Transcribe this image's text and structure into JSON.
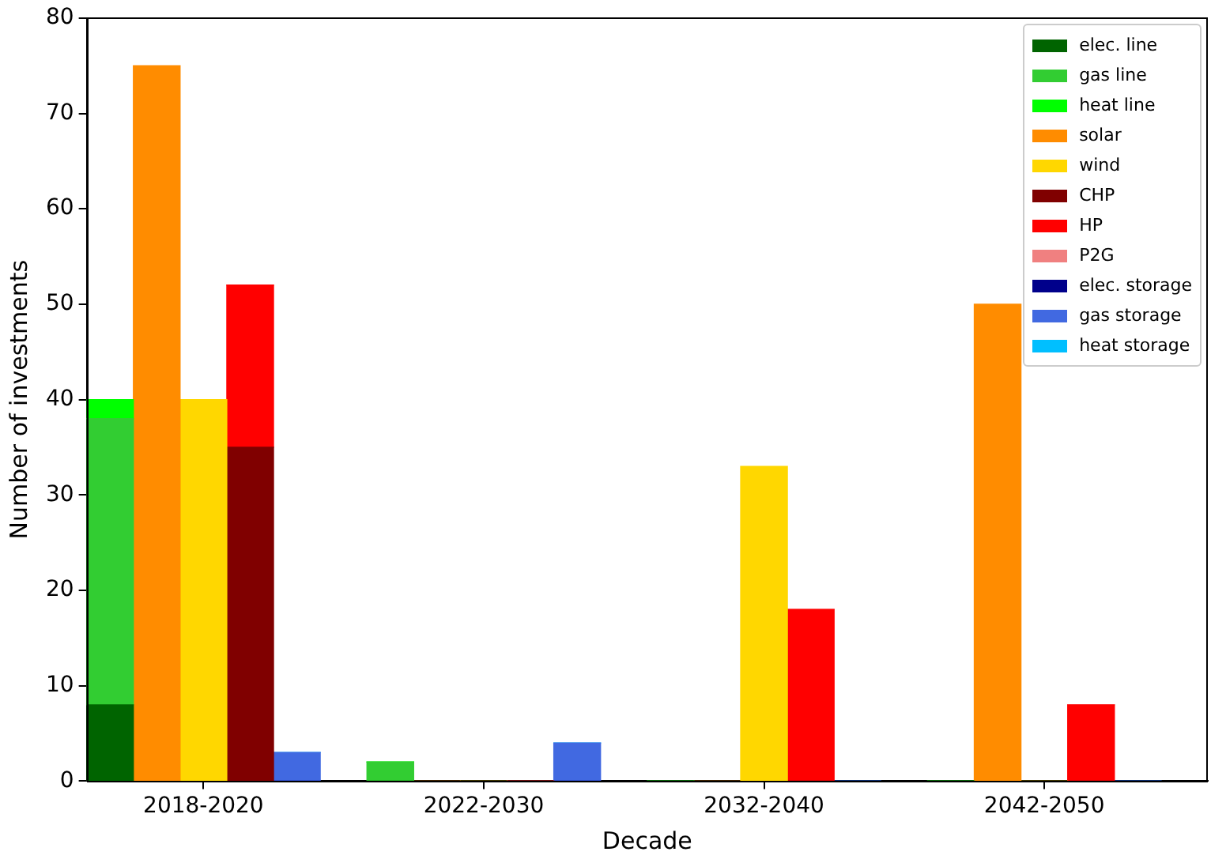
{
  "chart_data": {
    "type": "bar",
    "stacked": true,
    "xlabel": "Decade",
    "ylabel": "Number of investments",
    "categories": [
      null,
      null,
      "2018-2020",
      null,
      null,
      null,
      null,
      null,
      "2022-2030",
      null,
      null,
      null,
      null,
      null,
      "2032-2040",
      null,
      null,
      null,
      null,
      null,
      "2042-2050",
      null,
      null,
      null
    ],
    "ylim": [
      0,
      80
    ],
    "yticks": [
      0,
      10,
      20,
      30,
      40,
      50,
      60,
      70,
      80
    ],
    "grid": false,
    "legend": "top right",
    "series": [
      {
        "name": "elec. line",
        "color": "#006400",
        "values": [
          8,
          null,
          null,
          null,
          null,
          null,
          0,
          null,
          null,
          null,
          null,
          null,
          0,
          null,
          null,
          null,
          null,
          null,
          0,
          null,
          null,
          null,
          null,
          null
        ]
      },
      {
        "name": "gas line",
        "color": "#32cd32",
        "values": [
          30,
          null,
          null,
          null,
          null,
          null,
          2,
          null,
          null,
          null,
          null,
          null,
          0,
          null,
          null,
          null,
          null,
          null,
          0,
          null,
          null,
          null,
          null,
          null
        ]
      },
      {
        "name": "heat line",
        "color": "#00ff00",
        "values": [
          2,
          null,
          null,
          null,
          null,
          null,
          0,
          null,
          null,
          null,
          null,
          null,
          0,
          null,
          null,
          null,
          null,
          null,
          0,
          null,
          null,
          null,
          null,
          null
        ]
      },
      {
        "name": "solar",
        "color": "#ff8c00",
        "values": [
          null,
          75,
          null,
          null,
          null,
          null,
          null,
          0,
          null,
          null,
          null,
          null,
          null,
          0,
          null,
          null,
          null,
          null,
          null,
          50,
          null,
          null,
          null,
          null
        ]
      },
      {
        "name": "wind",
        "color": "#ffd700",
        "values": [
          null,
          null,
          40,
          null,
          null,
          null,
          null,
          null,
          0,
          null,
          null,
          null,
          null,
          null,
          33,
          null,
          null,
          null,
          null,
          null,
          0,
          null,
          null,
          null
        ]
      },
      {
        "name": "CHP",
        "color": "#800000",
        "values": [
          null,
          null,
          null,
          35,
          null,
          null,
          null,
          null,
          null,
          0,
          null,
          null,
          null,
          null,
          null,
          0,
          null,
          null,
          null,
          null,
          null,
          0,
          null,
          null
        ]
      },
      {
        "name": "HP",
        "color": "#ff0000",
        "values": [
          null,
          null,
          null,
          17,
          null,
          null,
          null,
          null,
          null,
          0,
          null,
          null,
          null,
          null,
          null,
          18,
          null,
          null,
          null,
          null,
          null,
          8,
          null,
          null
        ]
      },
      {
        "name": "P2G",
        "color": "#f08080",
        "values": [
          null,
          null,
          null,
          0,
          null,
          null,
          null,
          null,
          null,
          0,
          null,
          null,
          null,
          null,
          null,
          0,
          null,
          null,
          null,
          null,
          null,
          0,
          null,
          null
        ]
      },
      {
        "name": "elec. storage",
        "color": "#00008b",
        "values": [
          null,
          null,
          null,
          null,
          0,
          null,
          null,
          null,
          null,
          null,
          0,
          null,
          null,
          null,
          null,
          null,
          0,
          null,
          null,
          null,
          null,
          null,
          0,
          null
        ]
      },
      {
        "name": "gas storage",
        "color": "#4169e1",
        "values": [
          null,
          null,
          null,
          null,
          3,
          null,
          null,
          null,
          null,
          null,
          4,
          null,
          null,
          null,
          null,
          null,
          0,
          null,
          null,
          null,
          null,
          null,
          0,
          null
        ]
      },
      {
        "name": "heat storage",
        "color": "#00bfff",
        "values": [
          null,
          null,
          null,
          null,
          0,
          null,
          null,
          null,
          null,
          null,
          0,
          null,
          null,
          null,
          null,
          null,
          0,
          null,
          null,
          null,
          null,
          null,
          0,
          null
        ]
      }
    ]
  }
}
